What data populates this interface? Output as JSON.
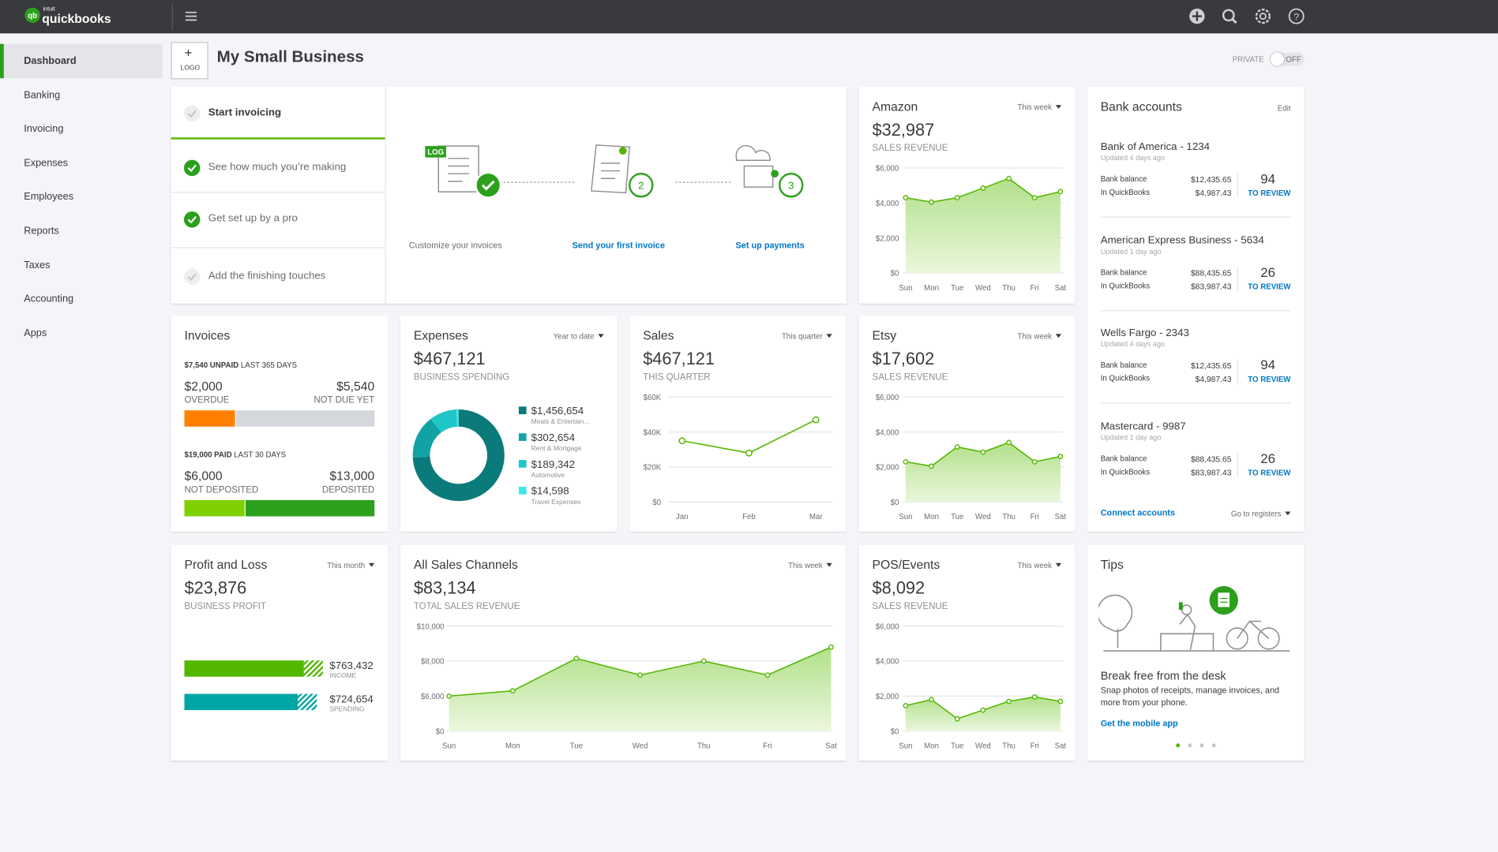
{
  "topbar": {
    "brand_small": "intuit",
    "brand": "quickbooks"
  },
  "sidebar": {
    "items": [
      "Dashboard",
      "Banking",
      "Invoicing",
      "Expenses",
      "Employees",
      "Reports",
      "Taxes",
      "Accounting",
      "Apps"
    ],
    "active": 0
  },
  "header": {
    "logo_plus": "+",
    "logo_label": "LOGO",
    "title": "My Small Business",
    "private_label": "PRIVATE",
    "toggle": "OFF"
  },
  "setup": {
    "steps": [
      "Start invoicing",
      "See how much you’re making",
      "Get set up by a pro",
      "Add the finishing touches"
    ],
    "steps_done": [
      false,
      true,
      true,
      false
    ],
    "logo_tag": "LOG",
    "badges": [
      "2",
      "3"
    ],
    "actions": [
      "Customize your invoices",
      "Send your first invoice",
      "Set up payments"
    ]
  },
  "amazon": {
    "title": "Amazon",
    "period": "This week",
    "amount": "$32,987",
    "caption": "SALES REVENUE",
    "chart": {
      "type": "area",
      "categories": [
        "Sun",
        "Mon",
        "Tue",
        "Wed",
        "Thu",
        "Fri",
        "Sat"
      ],
      "values": [
        4300,
        4050,
        4300,
        4850,
        5400,
        4300,
        4650
      ],
      "ylim": [
        0,
        6000
      ],
      "yticks": [
        {
          "value": 0,
          "label": "$0"
        },
        {
          "value": 2000,
          "label": "$2,000"
        },
        {
          "value": 4000,
          "label": "$4,000"
        },
        {
          "value": 6000,
          "label": "$6,000"
        }
      ]
    }
  },
  "bank": {
    "title": "Bank accounts",
    "edit": "Edit",
    "balance_label": "Bank balance",
    "qb_label": "In QuickBooks",
    "review_label": "TO REVIEW",
    "accounts": [
      {
        "name": "Bank of America - 1234",
        "updated": "Updated 4 days ago",
        "bank_balance": "$12,435.65",
        "qb_balance": "$4,987.43",
        "to_review": "94"
      },
      {
        "name": "American Express Business - 5634",
        "updated": "Updated 1 day ago",
        "bank_balance": "$88,435.65",
        "qb_balance": "$83,987.43",
        "to_review": "26"
      },
      {
        "name": "Wells Fargo - 2343",
        "updated": "Updated 4 days ago",
        "bank_balance": "$12,435.65",
        "qb_balance": "$4,987.43",
        "to_review": "94"
      },
      {
        "name": "Mastercard - 9987",
        "updated": "Updated 1 day ago",
        "bank_balance": "$88,435.65",
        "qb_balance": "$83,987.43",
        "to_review": "26"
      }
    ],
    "connect": "Connect accounts",
    "registers": "Go to registers"
  },
  "invoices": {
    "title": "Invoices",
    "unpaid": {
      "total": "$7,540 UNPAID",
      "period": "LAST 365 DAYS",
      "left": {
        "value": 2000,
        "label": "$2,000",
        "caption": "OVERDUE"
      },
      "right": {
        "value": 5540,
        "label": "$5,540",
        "caption": "NOT DUE YET"
      }
    },
    "paid": {
      "total": "$19,000 PAID",
      "period": "LAST 30 DAYS",
      "left": {
        "value": 6000,
        "label": "$6,000",
        "caption": "NOT DEPOSITED"
      },
      "right": {
        "value": 13000,
        "label": "$13,000",
        "caption": "DEPOSITED"
      }
    }
  },
  "expenses": {
    "title": "Expenses",
    "period": "Year to date",
    "amount": "$467,121",
    "caption": "BUSINESS SPENDING",
    "chart": {
      "type": "donut",
      "categories": [
        "Meals & Entertain…",
        "Rent & Mortgage",
        "Automotive",
        "Travel Expenses"
      ],
      "values": [
        1456654,
        302654,
        189342,
        14598
      ],
      "value_labels": [
        "$1,456,654",
        "$302,654",
        "$189,342",
        "$14,598"
      ],
      "colors": [
        "#0b7a7a",
        "#11a3a3",
        "#1fc6c6",
        "#3ee6e6"
      ]
    }
  },
  "sales": {
    "title": "Sales",
    "period": "This quarter",
    "amount": "$467,121",
    "caption": "THIS QUARTER",
    "chart": {
      "type": "line",
      "categories": [
        "Jan",
        "Feb",
        "Mar"
      ],
      "values": [
        35000,
        28000,
        47000
      ],
      "ylim": [
        0,
        60000
      ],
      "yticks": [
        {
          "value": 0,
          "label": "$0"
        },
        {
          "value": 20000,
          "label": "$20K"
        },
        {
          "value": 40000,
          "label": "$40K"
        },
        {
          "value": 60000,
          "label": "$60K"
        }
      ]
    }
  },
  "etsy": {
    "title": "Etsy",
    "period": "This week",
    "amount": "$17,602",
    "caption": "SALES REVENUE",
    "chart": {
      "type": "area",
      "categories": [
        "Sun",
        "Mon",
        "Tue",
        "Wed",
        "Thu",
        "Fri",
        "Sat"
      ],
      "values": [
        2300,
        2050,
        3150,
        2850,
        3400,
        2300,
        2600
      ],
      "ylim": [
        0,
        6000
      ],
      "yticks": [
        {
          "value": 0,
          "label": "$0"
        },
        {
          "value": 2000,
          "label": "$2,000"
        },
        {
          "value": 4000,
          "label": "$4,000"
        },
        {
          "value": 6000,
          "label": "$6,000"
        }
      ]
    }
  },
  "profit_loss": {
    "title": "Profit and Loss",
    "period": "This month",
    "amount": "$23,876",
    "caption": "BUSINESS PROFIT",
    "bars": [
      {
        "name": "INCOME",
        "value": 763432,
        "label": "$763,432",
        "color": "#53b700"
      },
      {
        "name": "SPENDING",
        "value": 724654,
        "label": "$724,654",
        "color": "#00a6a4"
      }
    ]
  },
  "all_sales": {
    "title": "All Sales Channels",
    "period": "This week",
    "amount": "$83,134",
    "caption": "TOTAL SALES REVENUE",
    "chart": {
      "type": "area",
      "categories": [
        "Sun",
        "Mon",
        "Tue",
        "Wed",
        "Thu",
        "Fri",
        "Sat"
      ],
      "values": [
        6000,
        6300,
        8150,
        7200,
        8000,
        7200,
        8800
      ],
      "ylim": [
        0,
        10000
      ],
      "yticks": [
        {
          "value": 0,
          "label": "$0"
        },
        {
          "value": 6000,
          "label": "$6,000"
        },
        {
          "value": 8000,
          "label": "$8,000"
        },
        {
          "value": 10000,
          "label": "$10,000"
        }
      ]
    }
  },
  "pos": {
    "title": "POS/Events",
    "period": "This week",
    "amount": "$8,092",
    "caption": "SALES REVENUE",
    "chart": {
      "type": "area",
      "categories": [
        "Sun",
        "Mon",
        "Tue",
        "Wed",
        "Thu",
        "Fri",
        "Sat"
      ],
      "values": [
        1450,
        1800,
        700,
        1200,
        1700,
        1950,
        1700
      ],
      "ylim": [
        0,
        6000
      ],
      "yticks": [
        {
          "value": 0,
          "label": "$0"
        },
        {
          "value": 2000,
          "label": "$2,000"
        },
        {
          "value": 4000,
          "label": "$4,000"
        },
        {
          "value": 6000,
          "label": "$6,000"
        }
      ]
    }
  },
  "tips": {
    "title": "Tips",
    "headline": "Break free from the desk",
    "body": "Snap photos of receipts, manage invoices, and more from your phone.",
    "link": "Get the mobile app",
    "pages": 4,
    "active_page": 0
  }
}
